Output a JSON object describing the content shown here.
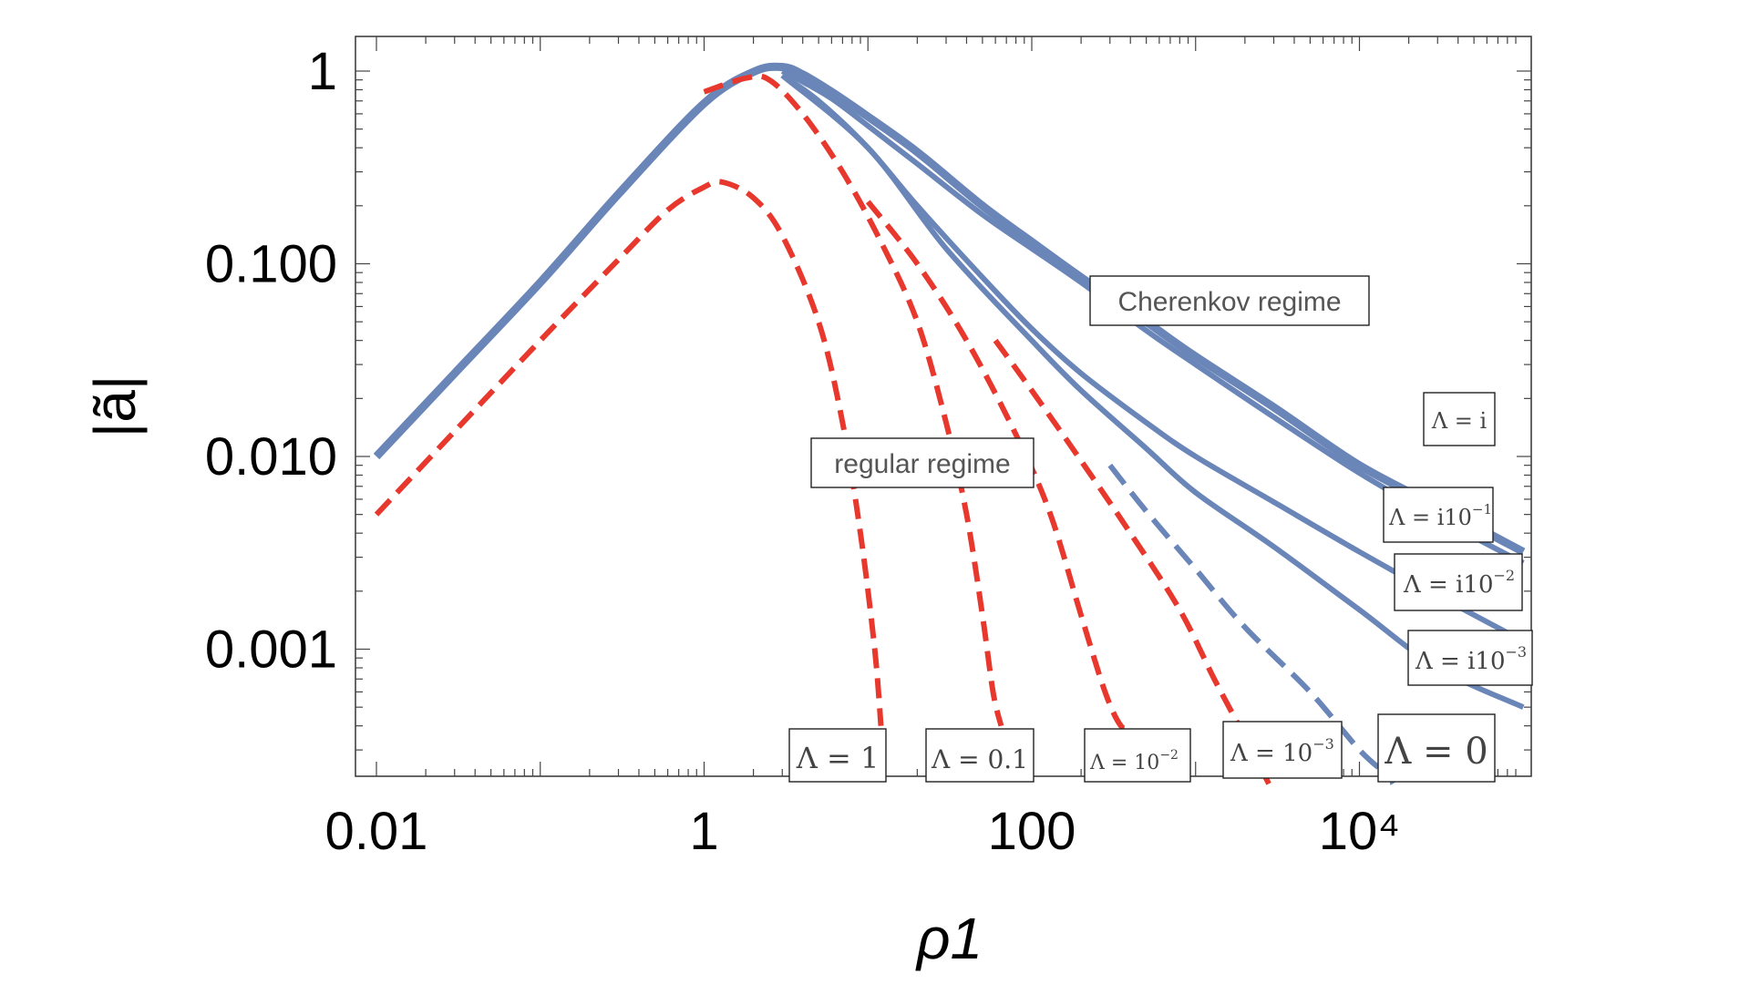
{
  "chart_data": {
    "type": "line",
    "xscale": "log",
    "yscale": "log",
    "xlim": [
      0.01,
      100000
    ],
    "ylim": [
      0.0002,
      2
    ],
    "xlabel": "ρ1",
    "ylabel": "|ã|",
    "x_tick_labels": [
      "0.01",
      "1",
      "100",
      "10⁴"
    ],
    "x_tick_values": [
      0.01,
      1,
      100,
      10000
    ],
    "y_tick_labels": [
      "1",
      "0.100",
      "0.010",
      "0.001"
    ],
    "y_tick_values": [
      1,
      0.1,
      0.01,
      0.001
    ],
    "colors": {
      "blue": "#6a86b8",
      "red": "#e8382d"
    },
    "series": [
      {
        "name": "Λ = 1",
        "style": "red-dashed",
        "x": [
          0.01,
          0.03,
          0.1,
          0.3,
          0.6,
          1,
          1.3,
          2,
          3,
          5,
          7,
          9,
          11,
          12
        ],
        "y": [
          0.005,
          0.0135,
          0.04,
          0.105,
          0.19,
          0.25,
          0.265,
          0.22,
          0.14,
          0.05,
          0.015,
          0.004,
          0.001,
          0.0004
        ]
      },
      {
        "name": "Λ = 0.1",
        "style": "red-dashed",
        "x": [
          1,
          1.8,
          2.5,
          4,
          7,
          12,
          20,
          30,
          40,
          50,
          58,
          65
        ],
        "y": [
          0.78,
          0.92,
          0.9,
          0.6,
          0.3,
          0.13,
          0.05,
          0.015,
          0.005,
          0.0015,
          0.0006,
          0.0004
        ]
      },
      {
        "name": "Λ = 10⁻²",
        "style": "red-dashed",
        "x": [
          10,
          20,
          40,
          80,
          130,
          200,
          280,
          350,
          400
        ],
        "y": [
          0.21,
          0.1,
          0.04,
          0.013,
          0.005,
          0.0015,
          0.0006,
          0.0004,
          0.0004
        ]
      },
      {
        "name": "Λ = 10⁻³",
        "style": "red-dashed",
        "x": [
          60,
          100,
          200,
          400,
          800,
          1300,
          2000,
          2800
        ],
        "y": [
          0.04,
          0.022,
          0.0095,
          0.004,
          0.0016,
          0.0007,
          0.00035,
          0.0002
        ]
      },
      {
        "name": "Λ = 0",
        "style": "blue-dashed",
        "x": [
          300,
          500,
          1000,
          2000,
          5000,
          10000,
          15000,
          16000
        ],
        "y": [
          0.009,
          0.0052,
          0.0026,
          0.0013,
          0.0006,
          0.0003,
          0.00022,
          0.0002
        ]
      },
      {
        "name": "Λ = i",
        "style": "blue-solid",
        "x": [
          0.01,
          0.03,
          0.1,
          0.3,
          1,
          2,
          3,
          4,
          6,
          10,
          20,
          50,
          100,
          200,
          500,
          1000,
          3000,
          10000,
          30000,
          100000
        ],
        "y": [
          0.01,
          0.027,
          0.08,
          0.23,
          0.68,
          0.99,
          1.05,
          0.96,
          0.78,
          0.58,
          0.38,
          0.2,
          0.13,
          0.085,
          0.05,
          0.033,
          0.018,
          0.009,
          0.0055,
          0.0032
        ]
      },
      {
        "name": "Λ = i10⁻¹",
        "style": "blue-solid",
        "x": [
          3,
          4,
          6,
          10,
          20,
          50,
          100,
          200,
          500,
          1000,
          3000,
          10000,
          30000,
          100000
        ],
        "y": [
          1.0,
          0.88,
          0.72,
          0.52,
          0.33,
          0.18,
          0.12,
          0.08,
          0.045,
          0.03,
          0.016,
          0.0082,
          0.0048,
          0.0028
        ]
      },
      {
        "name": "Λ = i10⁻²",
        "style": "blue-solid",
        "x": [
          3,
          5,
          10,
          20,
          50,
          100,
          200,
          500,
          1000,
          3000,
          10000,
          30000,
          100000
        ],
        "y": [
          0.95,
          0.7,
          0.4,
          0.2,
          0.085,
          0.046,
          0.027,
          0.015,
          0.01,
          0.0058,
          0.0032,
          0.0019,
          0.0011
        ]
      },
      {
        "name": "Λ = i10⁻³",
        "style": "blue-solid",
        "x": [
          3,
          10,
          30,
          100,
          200,
          500,
          1000,
          3000,
          10000,
          30000,
          100000
        ],
        "y": [
          0.95,
          0.4,
          0.12,
          0.04,
          0.022,
          0.011,
          0.0065,
          0.0034,
          0.0016,
          0.0008,
          0.0005
        ]
      }
    ],
    "annotations": {
      "cherenkov": "Cherenkov regime",
      "regular": "regular regime",
      "lam_i": "Λ = i",
      "lam_i1": "Λ = i10",
      "lam_i1_exp": "−1",
      "lam_i2": "Λ = i10",
      "lam_i2_exp": "−2",
      "lam_i3": "Λ = i10",
      "lam_i3_exp": "−3",
      "lam_1": "Λ = 1",
      "lam_01": "Λ = 0.1",
      "lam_m2": "Λ = 10",
      "lam_m2_exp": "−2",
      "lam_m3": "Λ = 10",
      "lam_m3_exp": "−3",
      "lam_0": "Λ = 0"
    }
  }
}
